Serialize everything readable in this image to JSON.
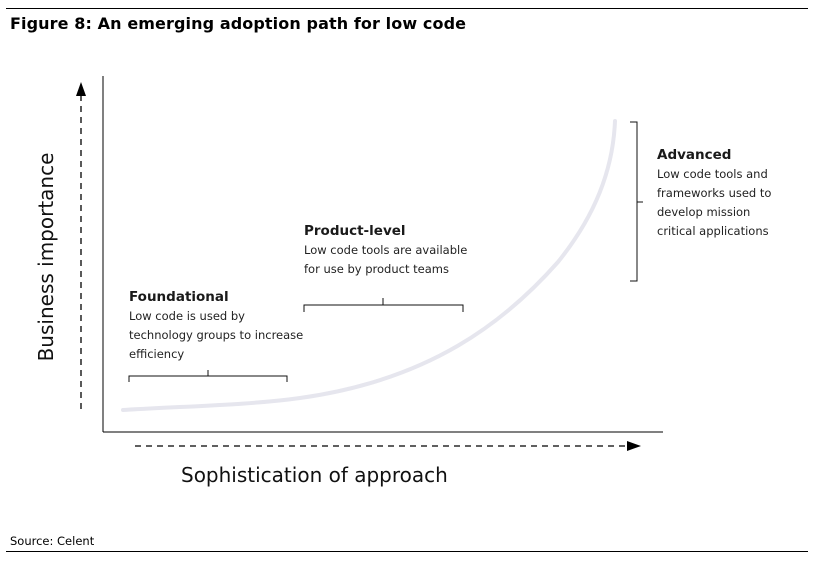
{
  "figure": {
    "title": "Figure 8: An emerging adoption path for low code",
    "source": "Source: Celent"
  },
  "axes": {
    "x_label": "Sophistication of approach",
    "y_label": "Business importance"
  },
  "stages": [
    {
      "title": "Foundational",
      "description": [
        "Low code is used by",
        "technology groups to increase",
        "efficiency"
      ]
    },
    {
      "title": "Product-level",
      "description": [
        "Low code tools are available",
        "for use by product teams"
      ]
    },
    {
      "title": "Advanced",
      "description": [
        "Low code tools and",
        "frameworks used to",
        "develop mission",
        "critical applications"
      ]
    }
  ],
  "colors": {
    "curve": "#e6e6ee",
    "axis": "#000000",
    "text": "#1a1a1a"
  }
}
